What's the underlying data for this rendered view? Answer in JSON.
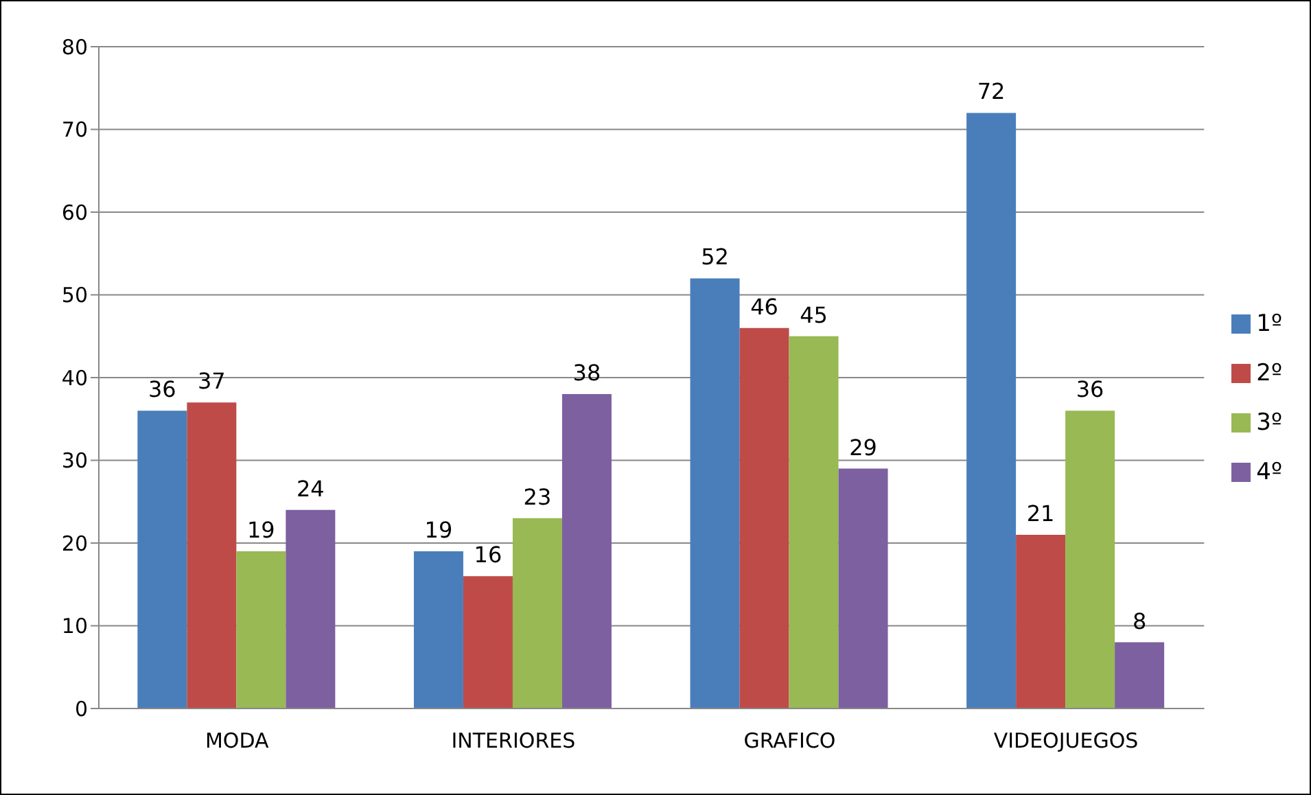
{
  "chart_data": {
    "type": "bar",
    "categories": [
      "MODA",
      "INTERIORES",
      "GRAFICO",
      "VIDEOJUEGOS"
    ],
    "series": [
      {
        "name": "1º",
        "color": "#4a7ebb",
        "values": [
          36,
          19,
          52,
          72
        ]
      },
      {
        "name": "2º",
        "color": "#be4b48",
        "values": [
          37,
          16,
          46,
          21
        ]
      },
      {
        "name": "3º",
        "color": "#98b954",
        "values": [
          19,
          23,
          45,
          36
        ]
      },
      {
        "name": "4º",
        "color": "#7d60a0",
        "values": [
          24,
          38,
          29,
          8
        ]
      }
    ],
    "ylim": [
      0,
      80
    ],
    "yticks": [
      0,
      10,
      20,
      30,
      40,
      50,
      60,
      70,
      80
    ],
    "grid": "y",
    "legend": "right",
    "data_labels": true
  }
}
